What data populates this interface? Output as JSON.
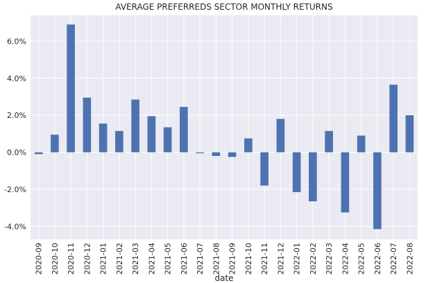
{
  "chart_data": {
    "type": "bar",
    "title": "AVERAGE PREFERREDS SECTOR MONTHLY RETURNS",
    "xlabel": "date",
    "ylabel": "",
    "categories": [
      "2020-09",
      "2020-10",
      "2020-11",
      "2020-12",
      "2021-01",
      "2021-02",
      "2021-03",
      "2021-04",
      "2021-05",
      "2021-06",
      "2021-07",
      "2021-08",
      "2021-09",
      "2021-10",
      "2021-11",
      "2021-12",
      "2022-01",
      "2022-02",
      "2022-03",
      "2022-04",
      "2022-05",
      "2022-06",
      "2022-07",
      "2022-08"
    ],
    "values": [
      -0.1,
      0.95,
      6.9,
      2.95,
      1.55,
      1.15,
      2.85,
      1.95,
      1.35,
      2.45,
      -0.05,
      -0.2,
      -0.25,
      0.75,
      -1.8,
      1.8,
      -2.15,
      -2.65,
      1.15,
      -3.25,
      0.9,
      -4.15,
      3.65,
      2.0
    ],
    "ylim": [
      -4.7,
      7.4
    ],
    "yticks": [
      -4,
      -2,
      0,
      2,
      4,
      6
    ],
    "ytick_labels": [
      "-4.0%",
      "-2.0%",
      "0.0%",
      "2.0%",
      "4.0%",
      "6.0%"
    ],
    "grid": true,
    "colors": {
      "bar": "#4c72b0",
      "background": "#eaeaf2",
      "grid": "#ffffff"
    }
  }
}
